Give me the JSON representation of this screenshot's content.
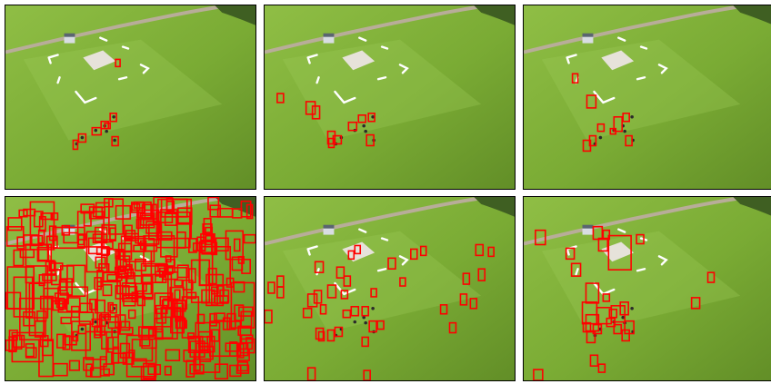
{
  "figure": {
    "description_label": "",
    "layout": {
      "rows": 2,
      "cols": 3
    },
    "colors": {
      "box": "#ff0000",
      "grass_light": "#8fbe45",
      "grass_mid": "#7aab34",
      "grass_dark": "#628e27",
      "road": "#b8ad99",
      "pad": "#e6e2da",
      "frame": "#000000"
    },
    "panels": [
      {
        "id": "top-left",
        "box_count": 8
      },
      {
        "id": "top-middle",
        "box_count": 10
      },
      {
        "id": "top-right",
        "box_count": 9
      },
      {
        "id": "bottom-left",
        "box_count": 300
      },
      {
        "id": "bottom-middle",
        "box_count": 40
      },
      {
        "id": "bottom-right",
        "box_count": 28
      }
    ]
  }
}
